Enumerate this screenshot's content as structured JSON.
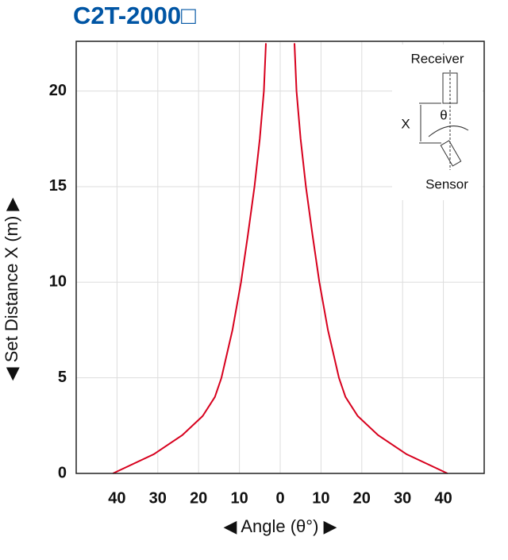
{
  "chart_data": {
    "type": "line",
    "title": "C2T-2000□",
    "x_label": "◀ Angle (θ°) ▶",
    "y_label": "◀ Set Distance X (m) ▶",
    "xlim": [
      -50,
      50
    ],
    "ylim": [
      0,
      22.6
    ],
    "xticks": [
      {
        "value": -40,
        "label": "40"
      },
      {
        "value": -30,
        "label": "30"
      },
      {
        "value": -20,
        "label": "20"
      },
      {
        "value": -10,
        "label": "10"
      },
      0,
      10,
      20,
      30,
      40
    ],
    "yticks": [
      0,
      5,
      10,
      15,
      20
    ],
    "grid": true,
    "series": [
      {
        "color": "#d7001d",
        "x": [
          -41,
          -31,
          -24,
          -19,
          -16,
          -14.4,
          -11.7,
          -9.6,
          -7.9,
          -6.3,
          -5,
          -4,
          -3.5
        ],
        "values": [
          0,
          1,
          2,
          3,
          4,
          5,
          7.5,
          10,
          12.5,
          15,
          17.5,
          20,
          22.5
        ]
      },
      {
        "color": "#d7001d",
        "x": [
          41,
          31,
          24,
          19,
          16,
          14.4,
          11.7,
          9.6,
          7.9,
          6.3,
          5,
          4,
          3.5
        ],
        "values": [
          0,
          1,
          2,
          3,
          4,
          5,
          7.5,
          10,
          12.5,
          15,
          17.5,
          20,
          22.5
        ]
      }
    ],
    "inset": {
      "receiver": "Receiver",
      "distance": "X",
      "angle": "θ",
      "sensor": "Sensor"
    }
  }
}
